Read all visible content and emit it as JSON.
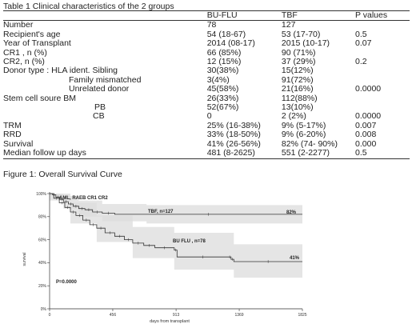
{
  "table": {
    "caption": "Table 1 Clinical characteristics of the 2 groups",
    "headers": [
      "",
      "BU-FLU",
      "TBF",
      "P values"
    ],
    "rows": [
      {
        "label": "Number",
        "bu": "78",
        "tbf": "127",
        "p": "",
        "indent": 0
      },
      {
        "label": "Recipient's age",
        "bu": "54 (18-67)",
        "tbf": "53 (17-70)",
        "p": "0.5",
        "indent": 0
      },
      {
        "label": "Year of Transplant",
        "bu": "2014 (08-17)",
        "tbf": "2015 (10-17)",
        "p": "0.07",
        "indent": 0
      },
      {
        "label": "CR1 , n (%)",
        "bu": "66 (85%)",
        "tbf": "90 (71%)",
        "p": "",
        "indent": 0
      },
      {
        "label": "CR2, n (%)",
        "bu": "12 (15%)",
        "tbf": "37 (29%)",
        "p": "0.2",
        "indent": 0
      },
      {
        "label": "Donor type :  HLA ident. Sibling",
        "bu": "30(38%)",
        "tbf": "15(12%)",
        "p": "",
        "indent": 0
      },
      {
        "label": "Family mismatched",
        "bu": "3(4%)",
        "tbf": "91(72%)",
        "p": "",
        "indent": 1
      },
      {
        "label": "Unrelated donor",
        "bu": "45(58%)",
        "tbf": "21(16%)",
        "p": "0.0000",
        "indent": 1
      },
      {
        "label": "Stem cell soure      BM",
        "bu": "26(33%)",
        "tbf": "112(88%)",
        "p": "",
        "indent": 0
      },
      {
        "label": "PB",
        "bu": "52(67%)",
        "tbf": "13(10%)",
        "p": "",
        "indent": 2
      },
      {
        "label": "CB",
        "bu": "0",
        "tbf": "2 (2%)",
        "p": "0.0000",
        "indent": 2
      },
      {
        "label": "TRM",
        "bu": "25% (16-38%)",
        "tbf": "9% (5-17%)",
        "p": "0.007",
        "indent": 0
      },
      {
        "label": "RRD",
        "bu": "33% (18-50%)",
        "tbf": "9% (6-20%)",
        "p": "0.008",
        "indent": 0
      },
      {
        "label": "Survival",
        "bu": "41% (26-56%)",
        "tbf": "82% (74- 90%)",
        "p": "0.000",
        "indent": 0
      },
      {
        "label": "Median follow up days",
        "bu": "481 (8-2625)",
        "tbf": "551 (2-2277)",
        "p": "0.5",
        "indent": 0
      }
    ]
  },
  "figure": {
    "caption": "Figure 1: Overall Survival Curve"
  },
  "chart_data": {
    "type": "line",
    "title": "AML, RAEB CR1 CR2",
    "xlabel": "days from transplant",
    "ylabel": "survival",
    "xlim": [
      0,
      1825
    ],
    "ylim": [
      0,
      100
    ],
    "x_ticks": [
      0,
      456,
      913,
      1369,
      1825
    ],
    "y_ticks": [
      0,
      20,
      40,
      60,
      80,
      100
    ],
    "y_tick_labels": [
      "0%",
      "20%",
      "40%",
      "60%",
      "80%",
      "100%"
    ],
    "grid": false,
    "annotation": "P=0.0000",
    "series": [
      {
        "name": "TBF, n=127",
        "end_label": "82%",
        "color": "#333333",
        "steps": [
          [
            0,
            100
          ],
          [
            20,
            99
          ],
          [
            45,
            97
          ],
          [
            75,
            95
          ],
          [
            100,
            93
          ],
          [
            135,
            91
          ],
          [
            170,
            89
          ],
          [
            210,
            87
          ],
          [
            255,
            86
          ],
          [
            310,
            84
          ],
          [
            380,
            83
          ],
          [
            470,
            82
          ],
          [
            1825,
            82
          ]
        ],
        "band_upper": [
          [
            0,
            100
          ],
          [
            100,
            98
          ],
          [
            210,
            94
          ],
          [
            380,
            91
          ],
          [
            700,
            90
          ],
          [
            1825,
            90
          ]
        ],
        "band_lower": [
          [
            0,
            98
          ],
          [
            100,
            87
          ],
          [
            210,
            80
          ],
          [
            380,
            76
          ],
          [
            700,
            74
          ],
          [
            1825,
            74
          ]
        ]
      },
      {
        "name": "BU FLU , n=78",
        "end_label": "41%",
        "color": "#333333",
        "steps": [
          [
            0,
            100
          ],
          [
            30,
            96
          ],
          [
            70,
            92
          ],
          [
            110,
            88
          ],
          [
            150,
            84
          ],
          [
            190,
            81
          ],
          [
            240,
            77
          ],
          [
            290,
            73
          ],
          [
            340,
            70
          ],
          [
            400,
            66
          ],
          [
            470,
            63
          ],
          [
            540,
            60
          ],
          [
            600,
            57
          ],
          [
            680,
            55
          ],
          [
            760,
            53
          ],
          [
            900,
            51
          ],
          [
            920,
            45
          ],
          [
            1290,
            45
          ],
          [
            1310,
            43
          ],
          [
            1330,
            41
          ],
          [
            1825,
            41
          ]
        ],
        "band_upper": [
          [
            0,
            100
          ],
          [
            150,
            92
          ],
          [
            340,
            81
          ],
          [
            600,
            71
          ],
          [
            900,
            66
          ],
          [
            1330,
            56
          ],
          [
            1825,
            56
          ]
        ],
        "band_lower": [
          [
            0,
            94
          ],
          [
            150,
            74
          ],
          [
            340,
            58
          ],
          [
            600,
            44
          ],
          [
            900,
            34
          ],
          [
            1330,
            27
          ],
          [
            1825,
            27
          ]
        ]
      }
    ]
  }
}
